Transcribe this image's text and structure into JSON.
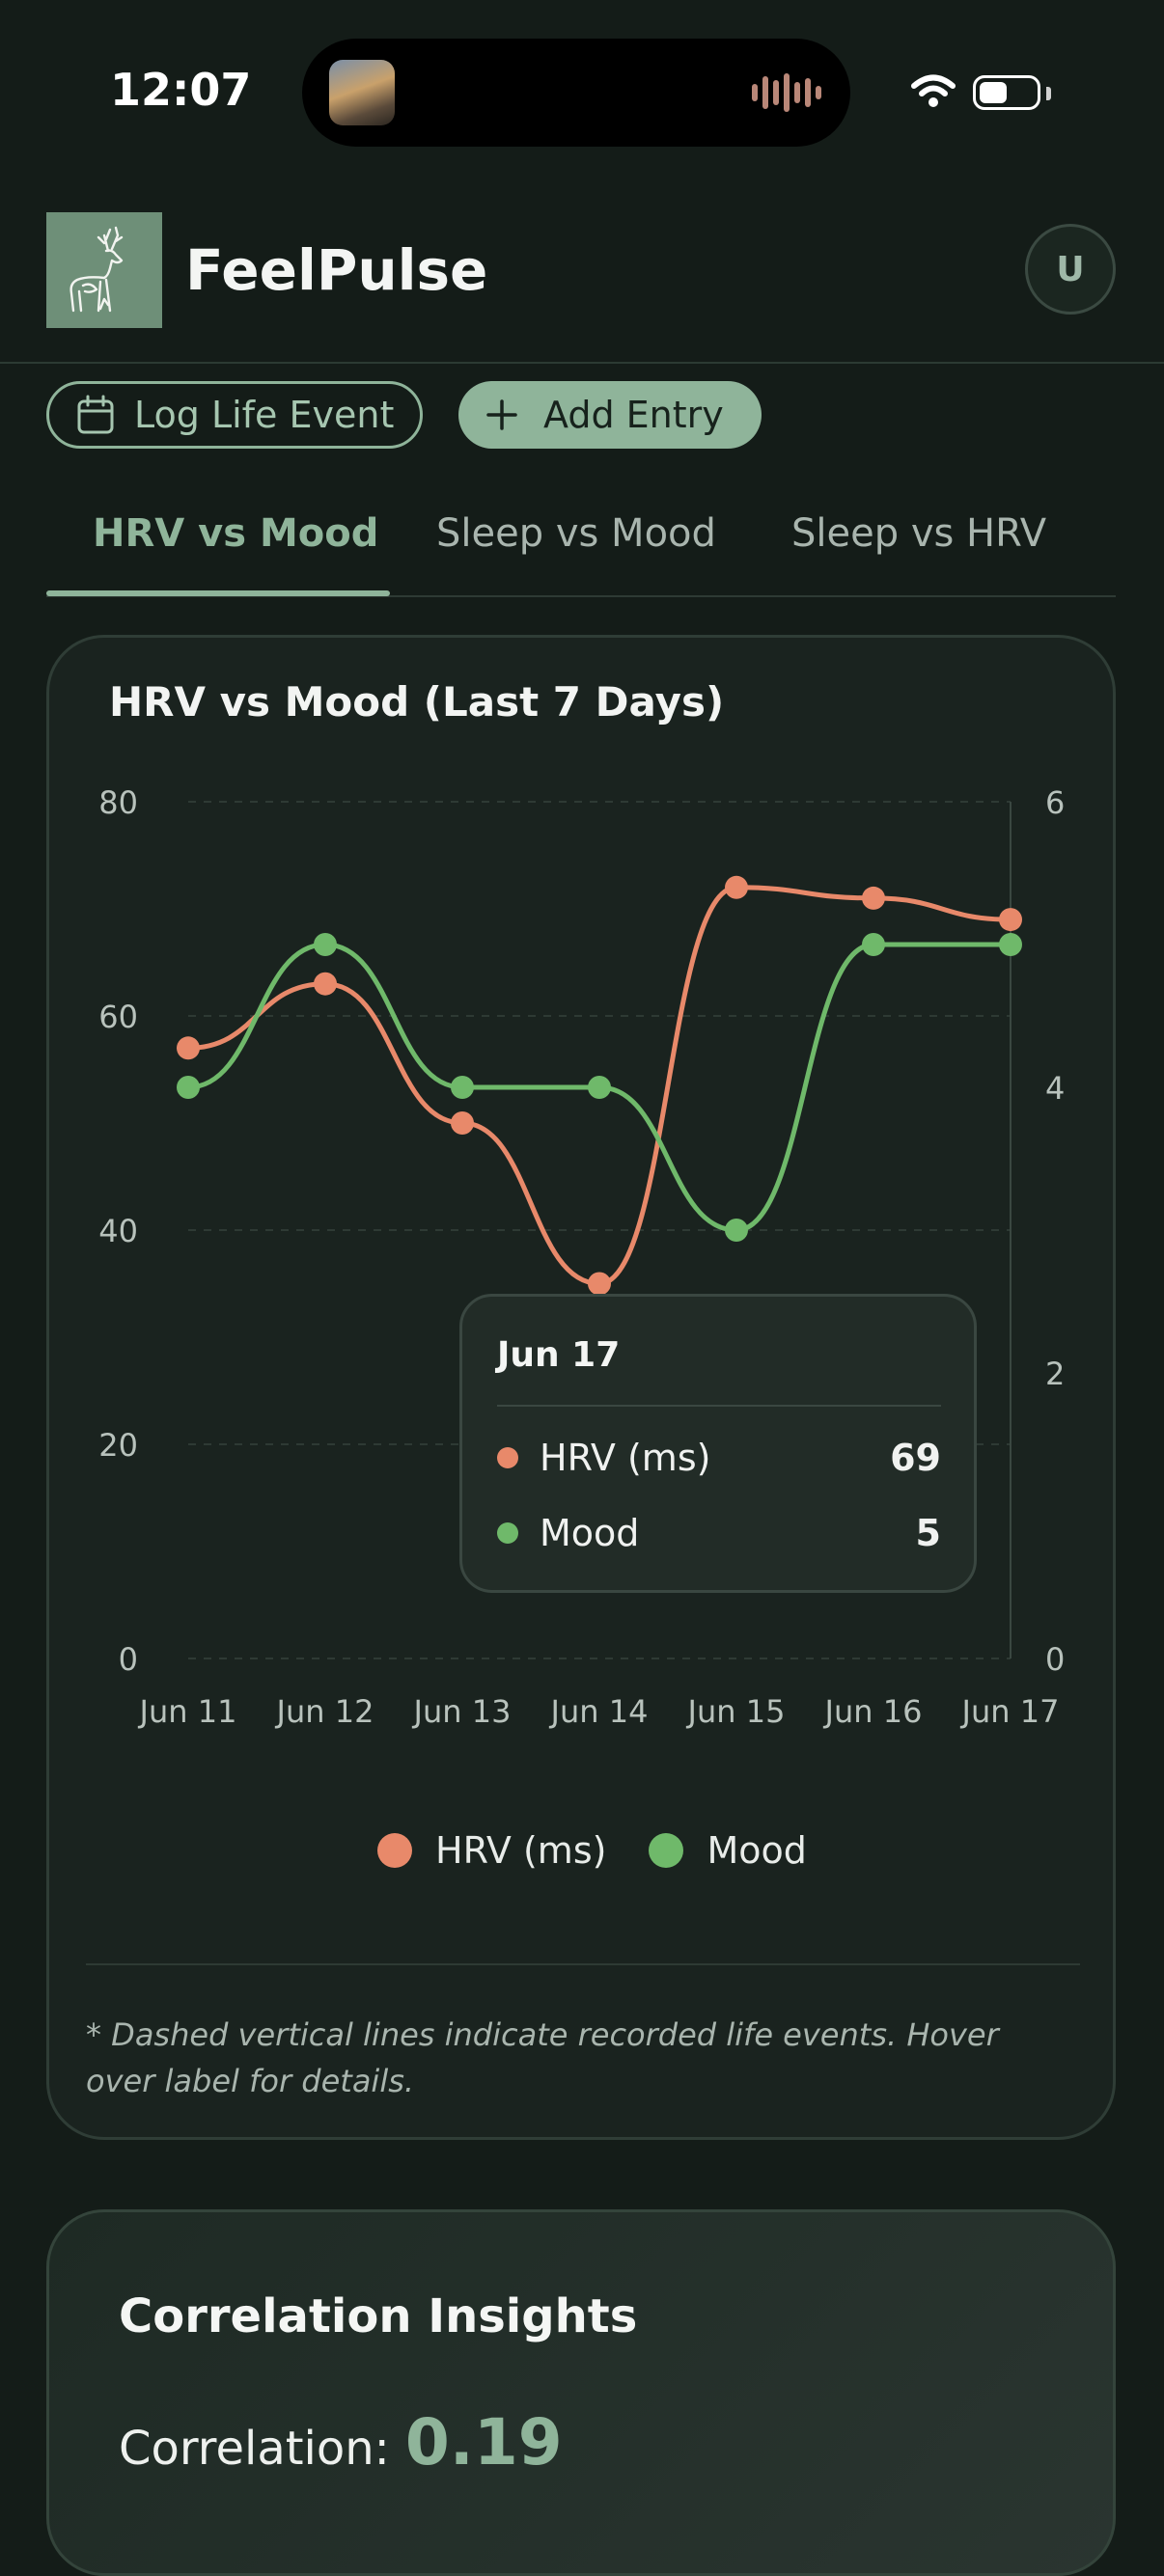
{
  "status_bar": {
    "time": "12:07"
  },
  "header": {
    "app_name": "FeelPulse",
    "avatar_initial": "U"
  },
  "actions": {
    "log_event_label": "Log Life Event",
    "add_entry_label": "Add Entry"
  },
  "tabs": [
    {
      "label": "HRV vs Mood",
      "active": true
    },
    {
      "label": "Sleep vs Mood",
      "active": false
    },
    {
      "label": "Sleep vs HRV",
      "active": false
    }
  ],
  "chart_data": {
    "type": "line",
    "title": "HRV vs Mood (Last 7 Days)",
    "categories": [
      "Jun 11",
      "Jun 12",
      "Jun 13",
      "Jun 14",
      "Jun 15",
      "Jun 16",
      "Jun 17"
    ],
    "series": [
      {
        "name": "HRV (ms)",
        "axis": "left",
        "color": "#e8896a",
        "values": [
          57,
          63,
          50,
          35,
          72,
          71,
          69
        ]
      },
      {
        "name": "Mood",
        "axis": "right",
        "color": "#6fb96a",
        "values": [
          4,
          5,
          4,
          4,
          3,
          5,
          5
        ]
      }
    ],
    "y_left": {
      "min": 0,
      "max": 80,
      "ticks": [
        0,
        20,
        40,
        60,
        80
      ]
    },
    "y_right": {
      "min": 0,
      "max": 6,
      "ticks": [
        0,
        2,
        4,
        6
      ]
    },
    "grid": "dashed horizontal",
    "legend": "bottom-center",
    "tooltip": {
      "date": "Jun 17",
      "rows": [
        {
          "label": "HRV (ms)",
          "value": "69",
          "color": "#e8896a"
        },
        {
          "label": "Mood",
          "value": "5",
          "color": "#6fb96a"
        }
      ]
    },
    "footnote": "* Dashed vertical lines indicate recorded life events. Hover over label for details."
  },
  "insights": {
    "title": "Correlation Insights",
    "correlation_label": "Correlation:",
    "correlation_value": "0.19"
  }
}
